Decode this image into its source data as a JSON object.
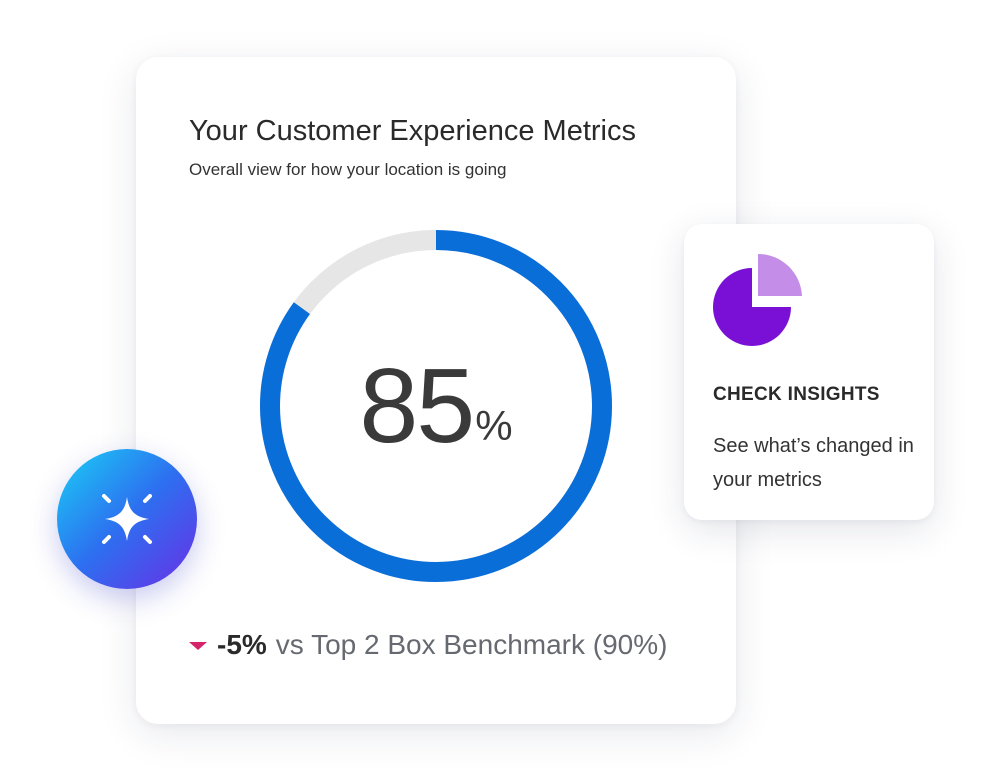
{
  "metrics_card": {
    "title": "Your Customer Experience Metrics",
    "subtitle": "Overall view for how your location is going",
    "score": {
      "value": "85",
      "unit": "%",
      "fraction": 0.85
    },
    "benchmark": {
      "delta": "-5%",
      "text": "vs Top 2 Box Benchmark (90%)"
    }
  },
  "insights_card": {
    "title": "CHECK INSIGHTS",
    "body": "See what’s changed in your metrics",
    "icon": "pie-chart-icon"
  },
  "ai_button": {
    "icon": "sparkle-icon"
  },
  "colors": {
    "gauge_fill": "#0a6ed9",
    "gauge_track": "#e6e6e6",
    "negative": "#d6246b",
    "pie_primary": "#7a0fd6",
    "pie_secondary": "#c48ee8",
    "ai_gradient_start": "#1ad0f5",
    "ai_gradient_end": "#6a2fe6"
  }
}
